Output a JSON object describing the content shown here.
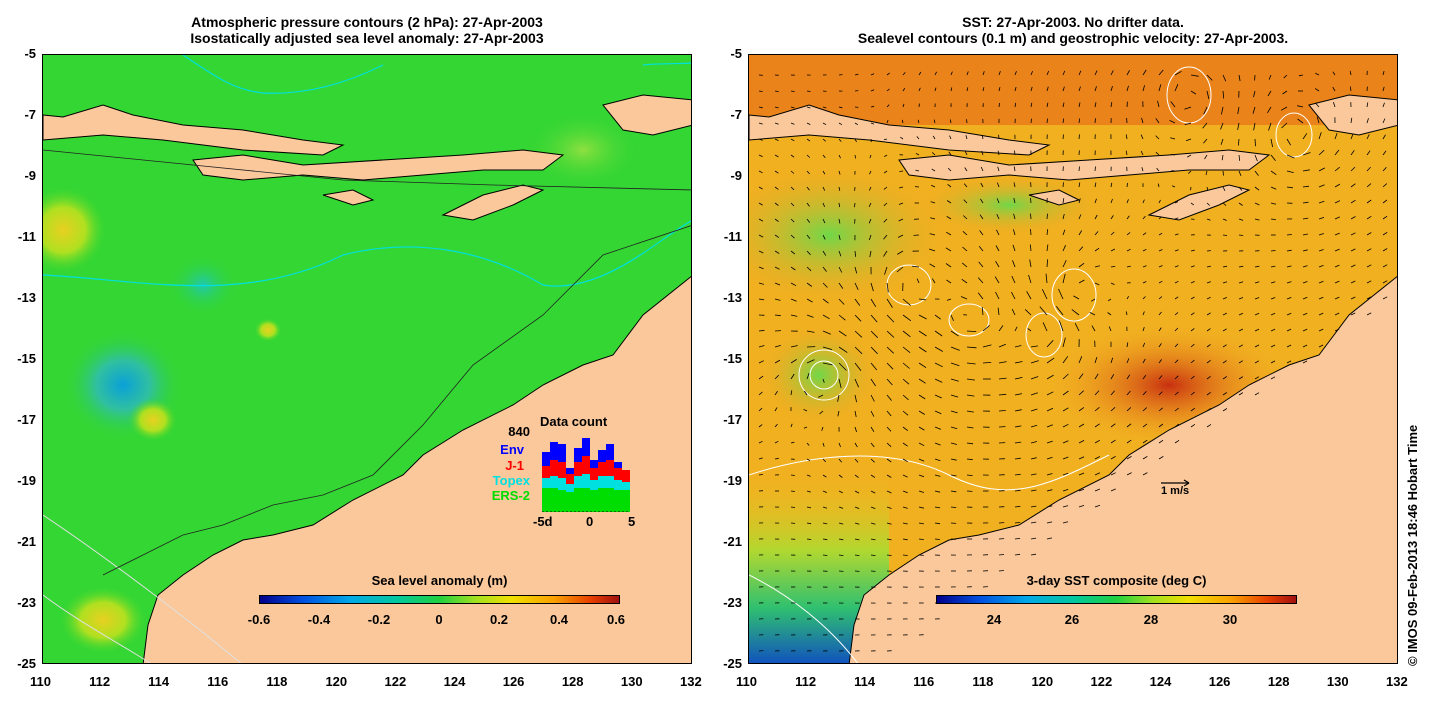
{
  "left": {
    "title1": "Atmospheric pressure contours (2 hPa): 27-Apr-2003",
    "title2": "Isostatically adjusted sea level anomaly: 27-Apr-2003",
    "colorbar_title": "Sea level anomaly (m)",
    "colorbar_ticks": [
      "-0.6",
      "-0.4",
      "-0.2",
      "0",
      "0.2",
      "0.4",
      "0.6"
    ],
    "inset": {
      "total": "840",
      "title": "Data count",
      "sources": [
        {
          "name": "Env",
          "color": "#0000ff"
        },
        {
          "name": "J-1",
          "color": "#ff0000"
        },
        {
          "name": "Topex",
          "color": "#00e0e0"
        },
        {
          "name": "ERS-2",
          "color": "#00dd00"
        }
      ],
      "xticks": [
        "-5d",
        "0",
        "5"
      ]
    }
  },
  "right": {
    "title1": "SST: 27-Apr-2003. No drifter data.",
    "title2": "Sealevel contours (0.1 m) and geostrophic velocity: 27-Apr-2003.",
    "colorbar_title": "3-day SST composite (deg C)",
    "colorbar_ticks": [
      "24",
      "26",
      "28",
      "30"
    ],
    "scale_label": "1 m/s"
  },
  "axes": {
    "x_ticks": [
      "110",
      "112",
      "114",
      "116",
      "118",
      "120",
      "122",
      "124",
      "126",
      "128",
      "130",
      "132"
    ],
    "y_ticks": [
      "-5",
      "-7",
      "-9",
      "-11",
      "-13",
      "-15",
      "-17",
      "-19",
      "-21",
      "-23",
      "-25"
    ]
  },
  "credit": "© IMOS 09-Feb-2013 18:46 Hobart Time",
  "colors": {
    "land": "#fac89b",
    "ocean_left": "#33d633",
    "ocean_right": "#f5a623"
  }
}
